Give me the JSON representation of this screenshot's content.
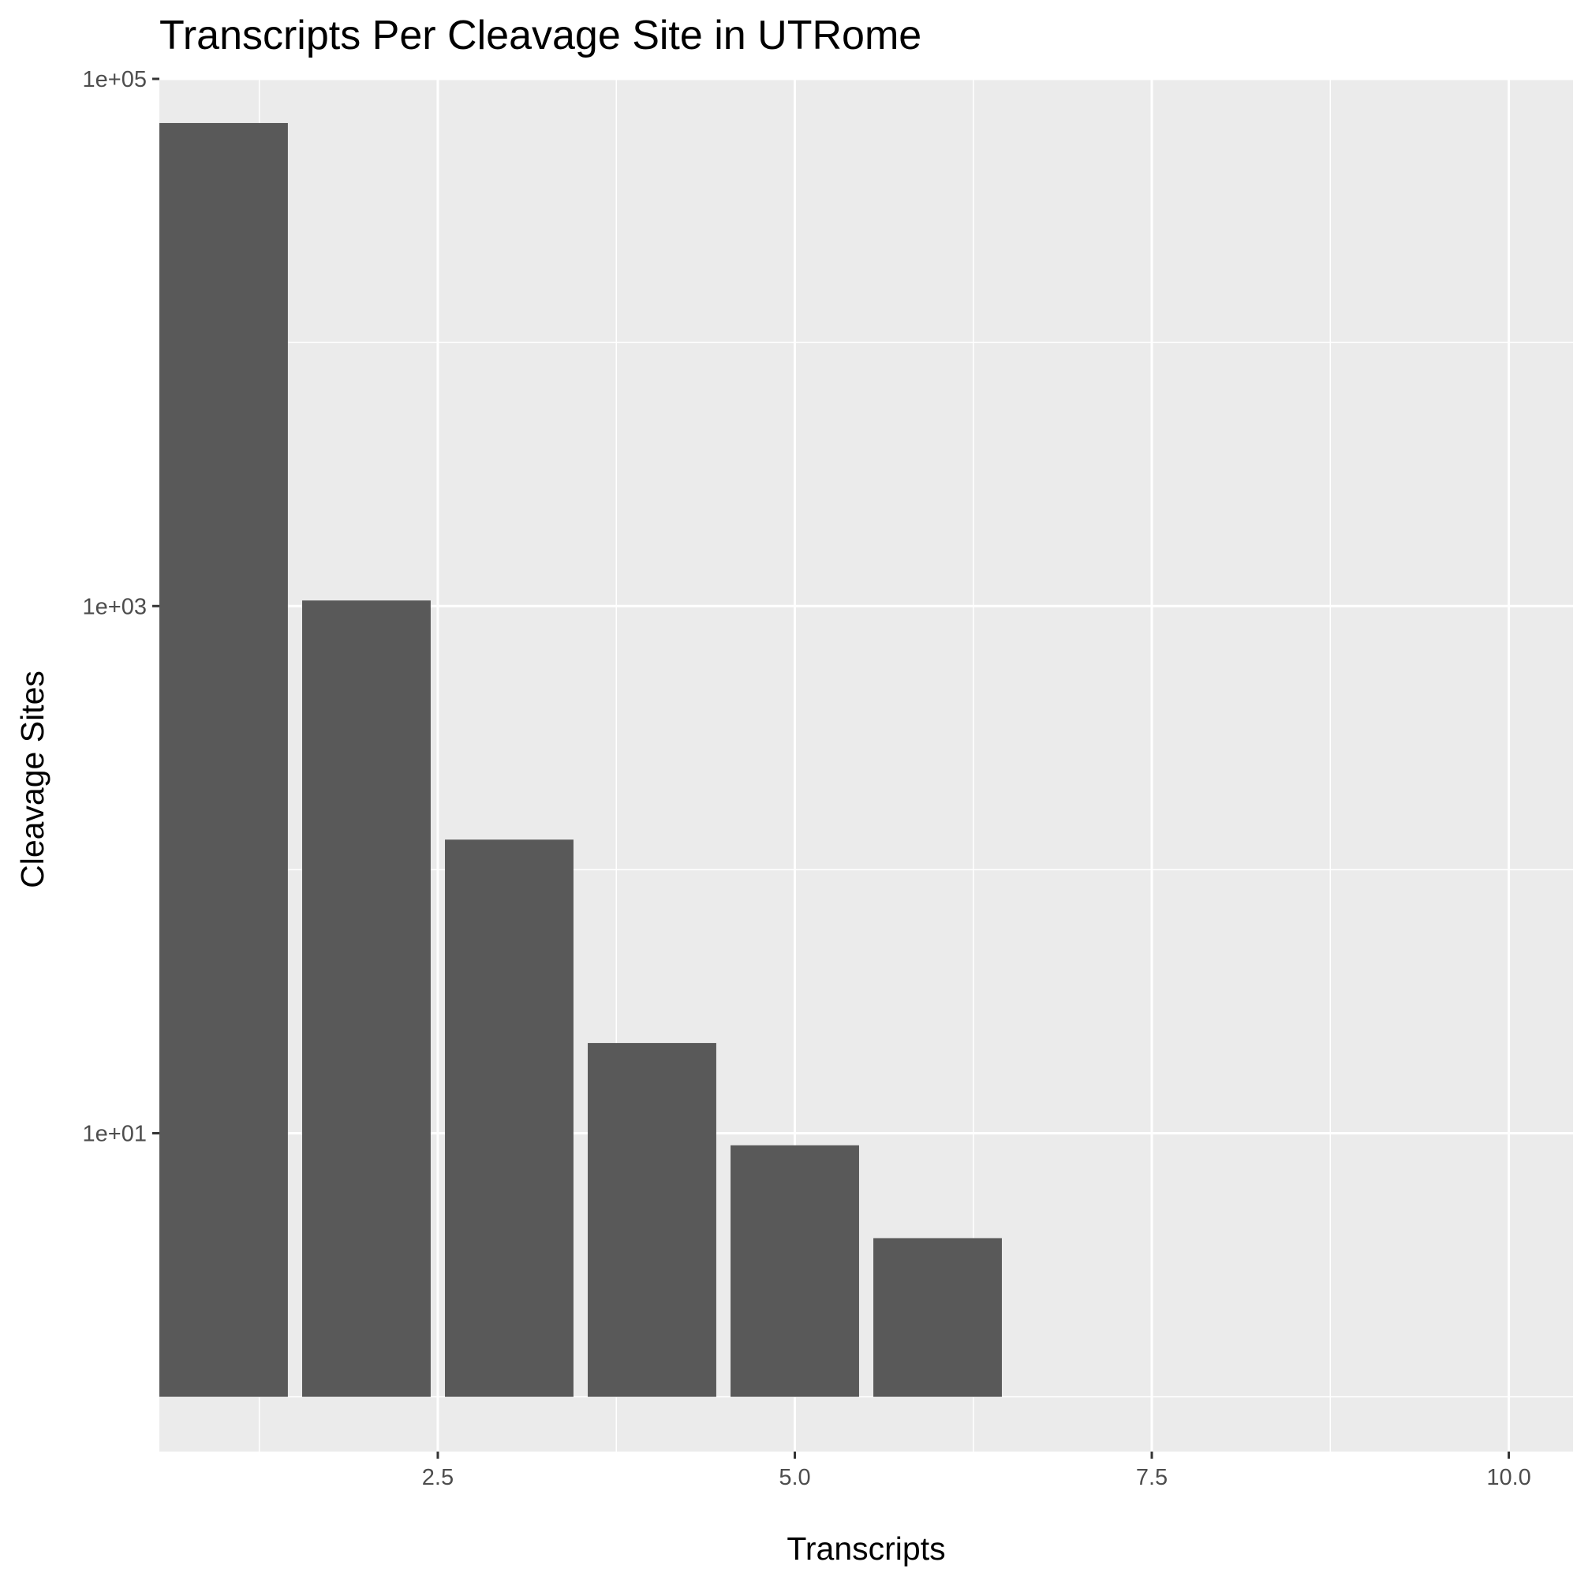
{
  "chart_data": {
    "type": "bar",
    "title": "Transcripts Per Cleavage Site in UTRome",
    "xlabel": "Transcripts",
    "ylabel": "Cleavage Sites",
    "x": [
      1,
      2,
      3,
      4,
      5,
      6
    ],
    "values": [
      68000,
      1050,
      130,
      22,
      9,
      4
    ],
    "baseline": 1,
    "xlim": [
      0.55,
      10.45
    ],
    "ylim": [
      0.62,
      100000
    ],
    "y_scale": "log10",
    "x_ticks": [
      {
        "value": 2.5,
        "label": "2.5"
      },
      {
        "value": 5.0,
        "label": "5.0"
      },
      {
        "value": 7.5,
        "label": "7.5"
      },
      {
        "value": 10.0,
        "label": "10.0"
      }
    ],
    "x_minor_ticks": [
      1.25,
      3.75,
      6.25,
      8.75
    ],
    "y_ticks": [
      {
        "value": 10,
        "label": "1e+01"
      },
      {
        "value": 1000,
        "label": "1e+03"
      },
      {
        "value": 100000,
        "label": "1e+05"
      }
    ],
    "y_minor_ticks": [
      1,
      100,
      10000
    ],
    "grid": true,
    "bar_color": "#595959",
    "panel_color": "#ebebeb",
    "grid_color": "#ffffff"
  }
}
